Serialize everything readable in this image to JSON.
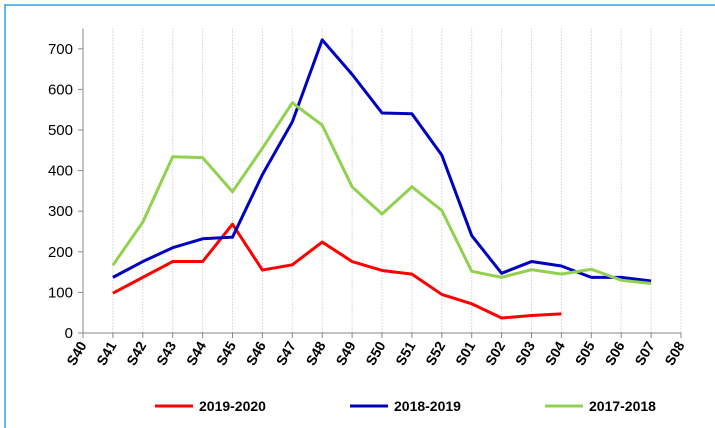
{
  "chart_data": {
    "type": "line",
    "categories": [
      "S40",
      "S41",
      "S42",
      "S43",
      "S44",
      "S45",
      "S46",
      "S47",
      "S48",
      "S49",
      "S50",
      "S51",
      "S52",
      "S01",
      "S02",
      "S03",
      "S04",
      "S05",
      "S06",
      "S07",
      "S08"
    ],
    "series": [
      {
        "name": "2019-2020",
        "color": "#ff0000",
        "values": [
          null,
          98,
          137,
          176,
          176,
          268,
          155,
          168,
          224,
          176,
          154,
          145,
          95,
          72,
          37,
          43,
          47,
          null,
          null,
          null,
          null
        ]
      },
      {
        "name": "2018-2019",
        "color": "#0000c0",
        "values": [
          null,
          137,
          176,
          210,
          232,
          236,
          390,
          520,
          722,
          637,
          542,
          540,
          438,
          240,
          147,
          176,
          165,
          137,
          137,
          128,
          null
        ]
      },
      {
        "name": "2017-2018",
        "color": "#92d050",
        "values": [
          null,
          167,
          273,
          434,
          432,
          348,
          455,
          567,
          512,
          360,
          293,
          360,
          302,
          152,
          137,
          156,
          145,
          157,
          130,
          122,
          null
        ]
      }
    ],
    "ylim": [
      0,
      750
    ],
    "yticks": [
      0,
      100,
      200,
      300,
      400,
      500,
      600,
      700
    ],
    "grid": true,
    "legend": "bottom"
  }
}
